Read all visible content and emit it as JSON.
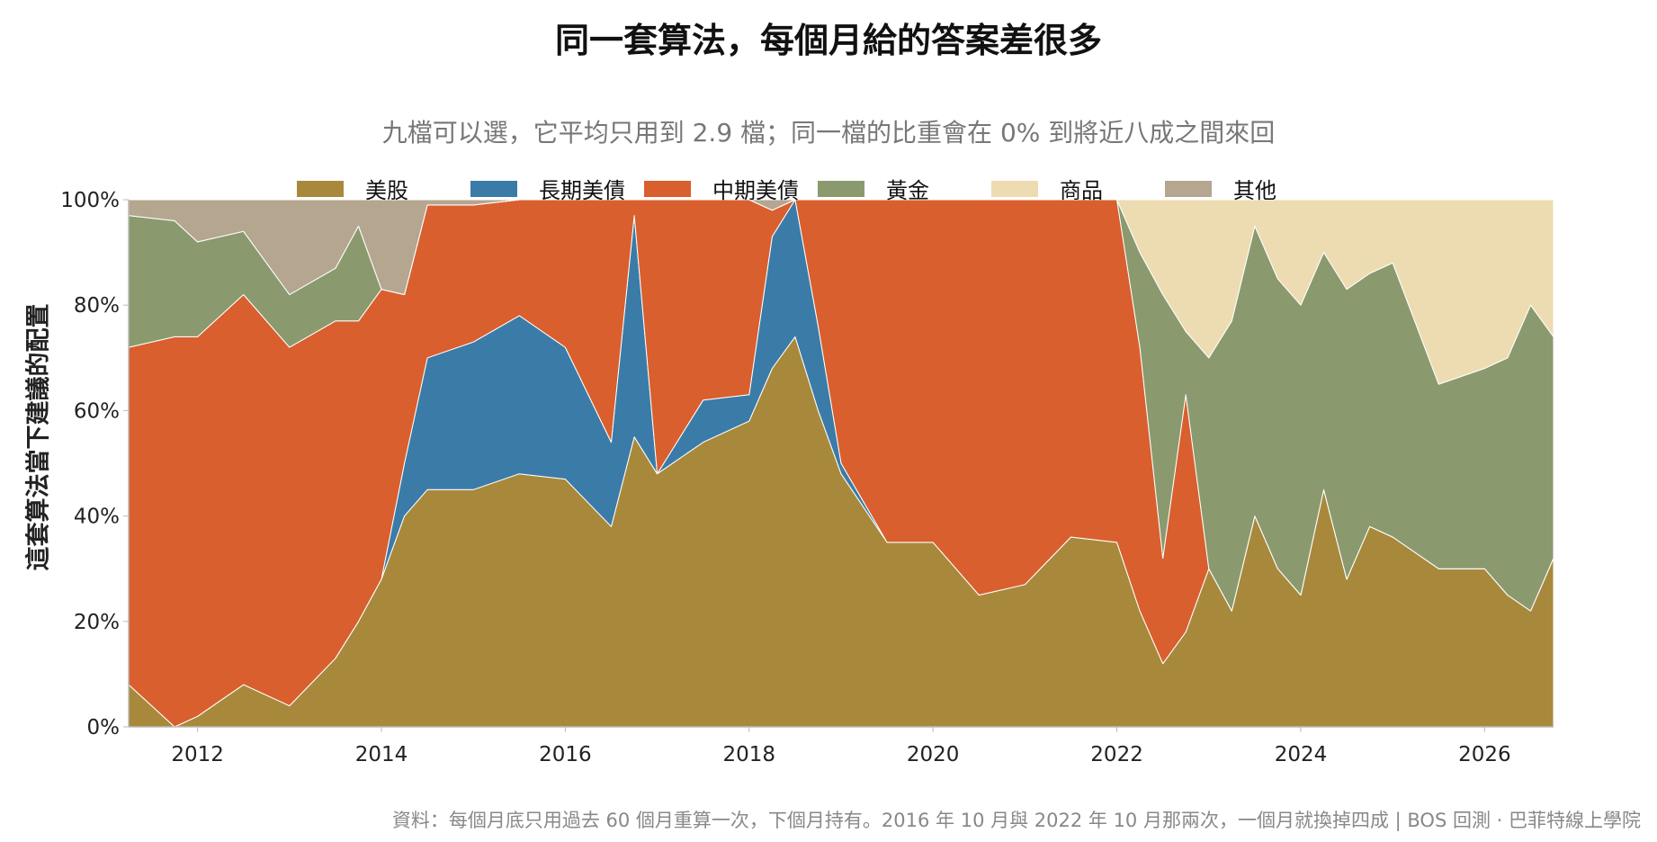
{
  "chart_data": {
    "type": "area",
    "stacked": true,
    "title": "同一套算法，每個月給的答案差很多",
    "subtitle": "九檔可以選，它平均只用到 2.9 檔；同一檔的比重會在 0% 到將近八成之間來回",
    "ylabel": "這套算法當下建議的配置",
    "source": "資料：每個月底只用過去 60 個月重算一次，下個月持有。2016 年 10 月與 2022 年 10 月那兩次，一個月就換掉四成 | BOS 回測 ·  巴菲特線上學院",
    "xlim": [
      2011.25,
      2026.75
    ],
    "ylim": [
      0,
      100
    ],
    "x_ticks": [
      2012,
      2014,
      2016,
      2018,
      2020,
      2022,
      2024,
      2026
    ],
    "y_ticks": [
      0,
      20,
      40,
      60,
      80,
      100
    ],
    "y_tick_labels": [
      "0%",
      "20%",
      "40%",
      "60%",
      "80%",
      "100%"
    ],
    "legend_position": "top-center",
    "colors": {
      "美股": "#a8893c",
      "長期美債": "#3b7ba8",
      "中期美債": "#d95f2e",
      "黃金": "#8a9a6e",
      "商品": "#eddcb2",
      "其他": "#b5a690"
    },
    "x": [
      2011.25,
      2011.75,
      2012.0,
      2012.5,
      2013.0,
      2013.5,
      2013.75,
      2014.0,
      2014.25,
      2014.5,
      2015.0,
      2015.5,
      2016.0,
      2016.5,
      2016.75,
      2017.0,
      2017.5,
      2018.0,
      2018.25,
      2018.5,
      2018.75,
      2019.0,
      2019.5,
      2020.0,
      2020.5,
      2021.0,
      2021.5,
      2022.0,
      2022.25,
      2022.5,
      2022.75,
      2023.0,
      2023.25,
      2023.5,
      2023.75,
      2024.0,
      2024.25,
      2024.5,
      2024.75,
      2025.0,
      2025.5,
      2026.0,
      2026.25,
      2026.5,
      2026.75
    ],
    "series": [
      {
        "name": "美股",
        "values": [
          8,
          0,
          2,
          8,
          4,
          13,
          20,
          28,
          40,
          45,
          45,
          48,
          47,
          38,
          55,
          48,
          54,
          58,
          68,
          74,
          60,
          48,
          35,
          35,
          25,
          27,
          36,
          35,
          22,
          12,
          18,
          30,
          22,
          40,
          30,
          25,
          45,
          28,
          38,
          36,
          30,
          30,
          25,
          22,
          32
        ]
      },
      {
        "name": "長期美債",
        "values": [
          0,
          0,
          0,
          0,
          0,
          0,
          0,
          0,
          10,
          25,
          28,
          30,
          25,
          16,
          42,
          0,
          8,
          5,
          25,
          26,
          16,
          2,
          0,
          0,
          0,
          0,
          0,
          0,
          0,
          0,
          0,
          0,
          0,
          0,
          0,
          0,
          0,
          0,
          0,
          0,
          0,
          0,
          0,
          0,
          0
        ]
      },
      {
        "name": "中期美債",
        "values": [
          64,
          74,
          72,
          74,
          68,
          64,
          57,
          55,
          32,
          29,
          26,
          22,
          28,
          46,
          3,
          52,
          38,
          37,
          5,
          0,
          24,
          50,
          65,
          65,
          75,
          73,
          64,
          65,
          50,
          20,
          45,
          0,
          0,
          0,
          0,
          0,
          0,
          0,
          0,
          0,
          0,
          0,
          0,
          0,
          0
        ]
      },
      {
        "name": "黃金",
        "values": [
          25,
          22,
          18,
          12,
          10,
          10,
          18,
          0,
          0,
          0,
          0,
          0,
          0,
          0,
          0,
          0,
          0,
          0,
          0,
          0,
          0,
          0,
          0,
          0,
          0,
          0,
          0,
          0,
          18,
          50,
          12,
          40,
          55,
          55,
          55,
          55,
          45,
          55,
          48,
          52,
          35,
          38,
          45,
          58,
          42
        ]
      },
      {
        "name": "商品",
        "values": [
          0,
          0,
          0,
          0,
          0,
          0,
          0,
          0,
          0,
          0,
          0,
          0,
          0,
          0,
          0,
          0,
          0,
          0,
          0,
          0,
          0,
          0,
          0,
          0,
          0,
          0,
          0,
          0,
          10,
          18,
          25,
          30,
          23,
          5,
          15,
          20,
          10,
          17,
          14,
          12,
          35,
          32,
          30,
          20,
          26
        ]
      },
      {
        "name": "其他",
        "values": [
          3,
          4,
          8,
          6,
          18,
          13,
          5,
          17,
          18,
          1,
          1,
          0,
          0,
          0,
          0,
          0,
          0,
          0,
          2,
          0,
          0,
          0,
          0,
          0,
          0,
          0,
          0,
          0,
          0,
          0,
          0,
          0,
          0,
          0,
          0,
          0,
          0,
          0,
          0,
          0,
          0,
          0,
          0,
          0,
          0
        ]
      }
    ]
  }
}
